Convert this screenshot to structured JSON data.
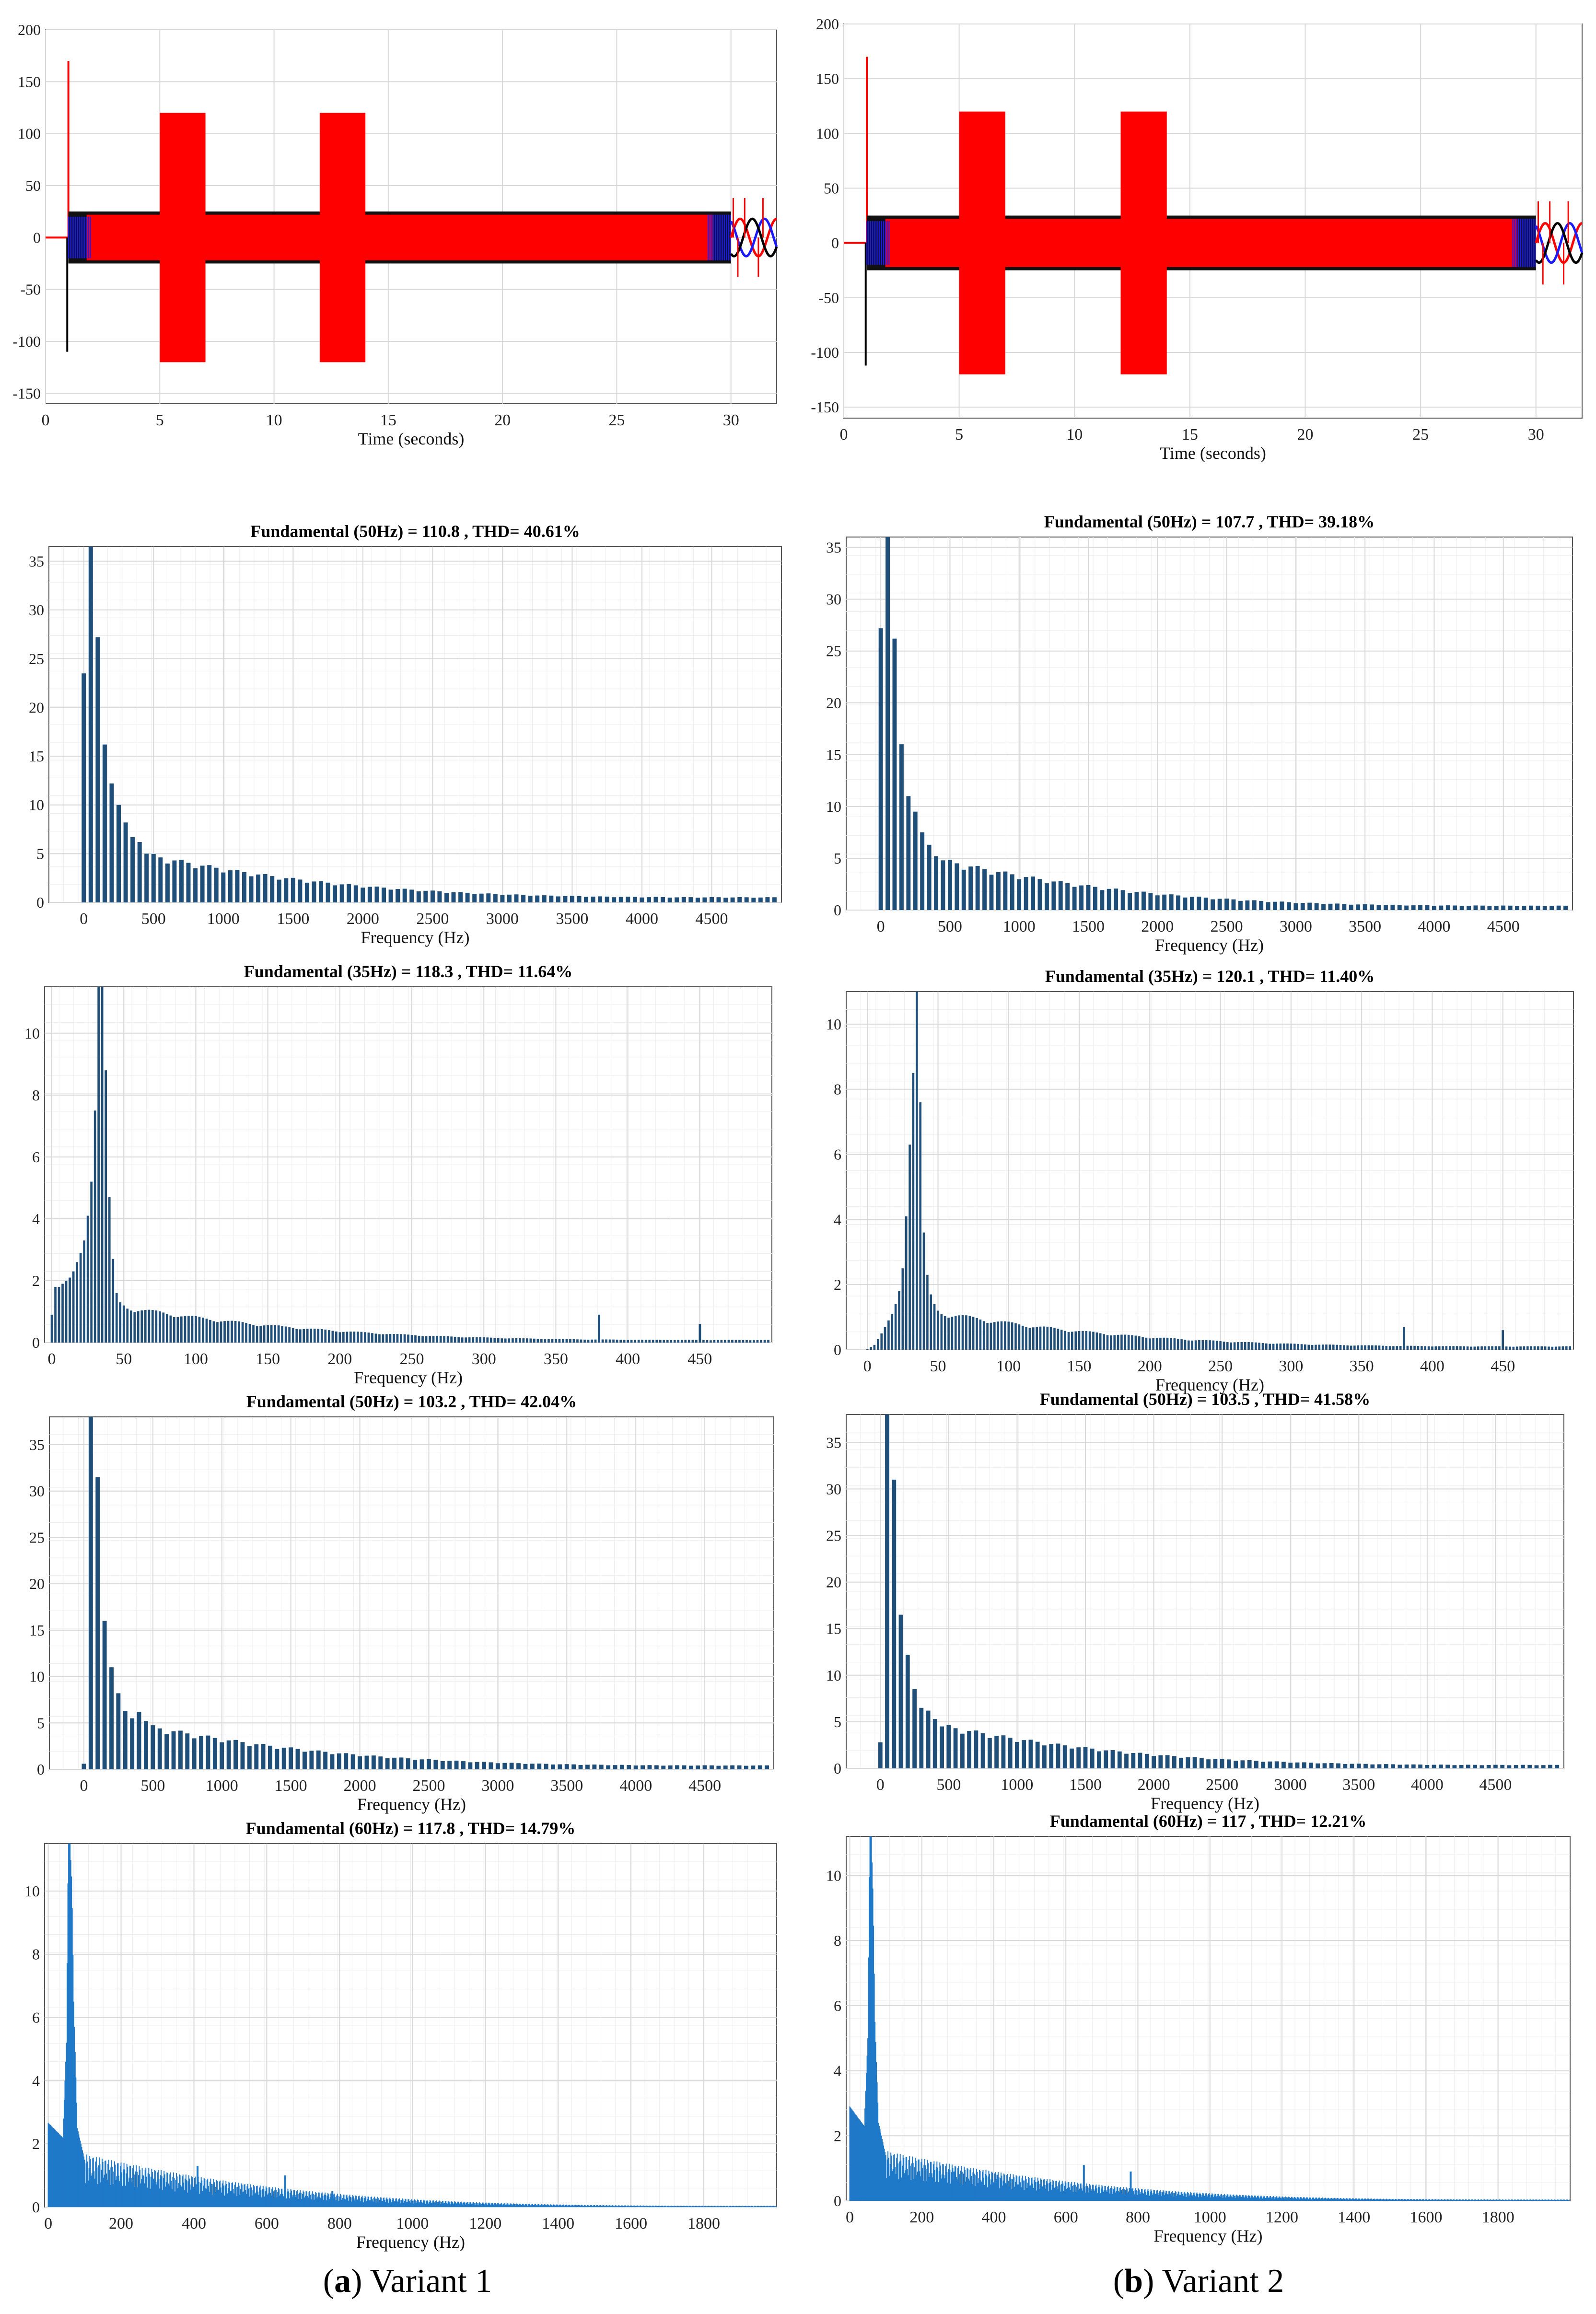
{
  "captions": {
    "left": {
      "letter": "a",
      "text": " Variant 1"
    },
    "right": {
      "letter": "b",
      "text": " Variant 2"
    }
  },
  "colors": {
    "phase_red": "#ff0000",
    "phase_blue": "#1a1aff",
    "phase_black": "#000000",
    "spectrum_bar": "#1f4e79",
    "spectrum_fill": "#1f78c8",
    "grid": "#d8d8d8",
    "axis": "#555555"
  },
  "chart_data": [
    {
      "id": "time-a",
      "type": "line",
      "xlabel": "Time (seconds)",
      "ylabel": "",
      "xlim": [
        0,
        32
      ],
      "ylim": [
        -160,
        200
      ],
      "xticks": [
        0,
        5,
        10,
        15,
        20,
        25,
        30
      ],
      "yticks": [
        -150,
        -100,
        -50,
        0,
        50,
        100,
        150,
        200
      ],
      "grid": true,
      "series": [
        {
          "color": "red",
          "values_desc": "envelope",
          "spike": [
            1,
            170
          ],
          "bursts": [
            [
              5,
              7,
              120
            ],
            [
              12,
              14,
              120
            ]
          ],
          "band": [
            [
              1,
              30,
              22
            ]
          ]
        },
        {
          "color": "black",
          "spike": [
            1,
            -110
          ]
        },
        {
          "color": "blue"
        }
      ]
    },
    {
      "id": "time-b",
      "type": "line",
      "xlabel": "Time (seconds)",
      "ylabel": "",
      "xlim": [
        0,
        32
      ],
      "ylim": [
        -160,
        200
      ],
      "xticks": [
        0,
        5,
        10,
        15,
        20,
        25,
        30
      ],
      "yticks": [
        -150,
        -100,
        -50,
        0,
        50,
        100,
        150,
        200
      ],
      "grid": true,
      "series": [
        {
          "color": "red",
          "spike": [
            1,
            170
          ],
          "bursts": [
            [
              5,
              7,
              120
            ],
            [
              12,
              14,
              120
            ]
          ],
          "band": [
            [
              1,
              30,
              22
            ]
          ]
        },
        {
          "color": "black",
          "spike": [
            1,
            -112
          ]
        },
        {
          "color": "blue"
        }
      ]
    },
    {
      "id": "fft-a1",
      "type": "bar",
      "title": "Fundamental (50Hz) = 110.8 , THD= 40.61%",
      "xlabel": "Frequency (Hz)",
      "xlim": [
        -250,
        5000
      ],
      "ylim": [
        0,
        36.5
      ],
      "xticks": [
        0,
        500,
        1000,
        1500,
        2000,
        2500,
        3000,
        3500,
        4000,
        4500
      ],
      "yticks": [
        0,
        5,
        10,
        15,
        20,
        25,
        30,
        35
      ],
      "bar_spacing": 50,
      "peaks": [
        [
          0,
          23.5
        ],
        [
          50,
          36.5
        ],
        [
          100,
          27.2
        ],
        [
          150,
          16.2
        ],
        [
          200,
          12.2
        ],
        [
          250,
          10
        ],
        [
          300,
          8.2
        ],
        [
          350,
          6.7
        ],
        [
          400,
          6.2
        ],
        [
          450,
          5
        ]
      ],
      "tail": {
        "start": 500,
        "value_at_start": 4.6,
        "value_at_end": 0.5
      }
    },
    {
      "id": "fft-b1",
      "type": "bar",
      "title": "Fundamental (50Hz) = 107.7 , THD= 39.18%",
      "xlabel": "Frequency (Hz)",
      "xlim": [
        -250,
        5000
      ],
      "ylim": [
        0,
        36
      ],
      "xticks": [
        0,
        500,
        1000,
        1500,
        2000,
        2500,
        3000,
        3500,
        4000,
        4500
      ],
      "yticks": [
        0,
        5,
        10,
        15,
        20,
        25,
        30,
        35
      ],
      "bar_spacing": 50,
      "peaks": [
        [
          0,
          27.2
        ],
        [
          50,
          36
        ],
        [
          100,
          26.2
        ],
        [
          150,
          16
        ],
        [
          200,
          11
        ],
        [
          250,
          9.5
        ],
        [
          300,
          7.5
        ],
        [
          350,
          6.3
        ],
        [
          400,
          5.2
        ],
        [
          450,
          4.8
        ]
      ],
      "tail": {
        "start": 500,
        "value_at_start": 4.5,
        "value_at_end": 0.4
      }
    },
    {
      "id": "fft-a2",
      "type": "bar",
      "title": "Fundamental (35Hz) = 118.3 , THD= 11.64%",
      "xlabel": "Frequency (Hz)",
      "xlim": [
        -5,
        500
      ],
      "ylim": [
        0,
        11.5
      ],
      "xticks": [
        0,
        50,
        100,
        150,
        200,
        250,
        300,
        350,
        400,
        450
      ],
      "yticks": [
        0,
        2,
        4,
        6,
        8,
        10
      ],
      "bar_spacing": 2.5,
      "peaks": [
        [
          0,
          0.9
        ],
        [
          2.5,
          1.8
        ],
        [
          5,
          1.8
        ],
        [
          7.5,
          1.9
        ],
        [
          10,
          2
        ],
        [
          12.5,
          2.1
        ],
        [
          15,
          2.3
        ],
        [
          17.5,
          2.6
        ],
        [
          20,
          2.9
        ],
        [
          22.5,
          3.3
        ],
        [
          25,
          4.1
        ],
        [
          27.5,
          5.2
        ],
        [
          30,
          7.5
        ],
        [
          32.5,
          11.5
        ],
        [
          35,
          11.5
        ],
        [
          37.5,
          8.8
        ],
        [
          40,
          4.7
        ],
        [
          42.5,
          2.7
        ],
        [
          45,
          1.6
        ],
        [
          47.5,
          1.3
        ],
        [
          50,
          1.2
        ],
        [
          380,
          0.9
        ],
        [
          450,
          0.6
        ]
      ],
      "tail": {
        "start": 52.5,
        "value_at_start": 1.1,
        "value_at_end": 0.08
      }
    },
    {
      "id": "fft-b2",
      "type": "bar",
      "title": "Fundamental (35Hz) = 120.1 , THD= 11.40%",
      "xlabel": "Frequency (Hz)",
      "xlim": [
        -15,
        500
      ],
      "ylim": [
        0,
        11
      ],
      "xticks": [
        0,
        50,
        100,
        150,
        200,
        250,
        300,
        350,
        400,
        450
      ],
      "yticks": [
        0,
        2,
        4,
        6,
        8,
        10
      ],
      "bar_spacing": 2.5,
      "peaks": [
        [
          0,
          0.02
        ],
        [
          5,
          0.15
        ],
        [
          10,
          0.5
        ],
        [
          15,
          0.9
        ],
        [
          17.5,
          1.1
        ],
        [
          20,
          1.4
        ],
        [
          22.5,
          1.8
        ],
        [
          25,
          2.5
        ],
        [
          27.5,
          4.1
        ],
        [
          30,
          6.3
        ],
        [
          32.5,
          8.5
        ],
        [
          35,
          11
        ],
        [
          37.5,
          7.6
        ],
        [
          40,
          3.6
        ],
        [
          42.5,
          2.3
        ],
        [
          45,
          1.7
        ],
        [
          47.5,
          1.4
        ],
        [
          50,
          1.2
        ],
        [
          380,
          0.7
        ],
        [
          450,
          0.6
        ]
      ],
      "tail": {
        "start": 52.5,
        "value_at_start": 1.1,
        "value_at_end": 0.1
      }
    },
    {
      "id": "fft-a3",
      "type": "bar",
      "title": "Fundamental (50Hz) = 103.2 , THD= 42.04%",
      "xlabel": "Frequency (Hz)",
      "xlim": [
        -250,
        5000
      ],
      "ylim": [
        0,
        38
      ],
      "xticks": [
        0,
        500,
        1000,
        1500,
        2000,
        2500,
        3000,
        3500,
        4000,
        4500
      ],
      "yticks": [
        0,
        5,
        10,
        15,
        20,
        25,
        30,
        35
      ],
      "bar_spacing": 50,
      "peaks": [
        [
          0,
          0.6
        ],
        [
          50,
          38
        ],
        [
          100,
          31.5
        ],
        [
          150,
          16
        ],
        [
          200,
          11
        ],
        [
          250,
          8.2
        ],
        [
          300,
          6.3
        ],
        [
          350,
          5.5
        ],
        [
          400,
          6.2
        ],
        [
          450,
          5.2
        ]
      ],
      "tail": {
        "start": 500,
        "value_at_start": 4.4,
        "value_at_end": 0.4
      }
    },
    {
      "id": "fft-b3",
      "type": "bar",
      "title": "Fundamental (50Hz) = 103.5 , THD= 41.58%",
      "xlabel": "Frequency (Hz)",
      "xlim": [
        -250,
        5000
      ],
      "ylim": [
        0,
        38
      ],
      "xticks": [
        0,
        500,
        1000,
        1500,
        2000,
        2500,
        3000,
        3500,
        4000,
        4500
      ],
      "yticks": [
        0,
        5,
        10,
        15,
        20,
        25,
        30,
        35
      ],
      "bar_spacing": 50,
      "peaks": [
        [
          0,
          2.8
        ],
        [
          50,
          38
        ],
        [
          100,
          31
        ],
        [
          150,
          16.5
        ],
        [
          200,
          12.2
        ],
        [
          250,
          8.5
        ],
        [
          300,
          6.5
        ],
        [
          350,
          6.2
        ],
        [
          400,
          5.3
        ],
        [
          450,
          4.5
        ]
      ],
      "tail": {
        "start": 500,
        "value_at_start": 4.3,
        "value_at_end": 0.35
      }
    },
    {
      "id": "fft-a4",
      "type": "bar",
      "title": "Fundamental (60Hz) = 117.8 , THD= 14.79%",
      "xlabel": "Frequency (Hz)",
      "xlim": [
        -10,
        2000
      ],
      "ylim": [
        0,
        11.5
      ],
      "xticks": [
        0,
        200,
        400,
        600,
        800,
        1000,
        1200,
        1400,
        1600,
        1800
      ],
      "yticks": [
        0,
        2,
        4,
        6,
        8,
        10
      ],
      "bar_spacing": 2,
      "peaks": [
        [
          40,
          2.2
        ],
        [
          50,
          5.2
        ],
        [
          55,
          11.5
        ],
        [
          60,
          11.5
        ],
        [
          65,
          10.2
        ],
        [
          70,
          6.5
        ],
        [
          80,
          2.5
        ],
        [
          100,
          1.5
        ],
        [
          260,
          1
        ],
        [
          290,
          0.9
        ],
        [
          410,
          1.3
        ],
        [
          650,
          1
        ],
        [
          780,
          0.5
        ]
      ],
      "tail": {
        "start": 100,
        "value_at_start": 1.2,
        "value_at_end": 0.03
      }
    },
    {
      "id": "fft-b4",
      "type": "bar",
      "title": "Fundamental (60Hz) = 117 , THD= 12.21%",
      "xlabel": "Frequency (Hz)",
      "xlim": [
        -10,
        2000
      ],
      "ylim": [
        0,
        11.2
      ],
      "xticks": [
        0,
        200,
        400,
        600,
        800,
        1000,
        1200,
        1400,
        1600,
        1800
      ],
      "yticks": [
        0,
        2,
        4,
        6,
        8,
        10
      ],
      "bar_spacing": 2,
      "peaks": [
        [
          40,
          2.3
        ],
        [
          50,
          5
        ],
        [
          55,
          11.2
        ],
        [
          60,
          11.2
        ],
        [
          65,
          9.2
        ],
        [
          70,
          5.5
        ],
        [
          80,
          2.4
        ],
        [
          100,
          1.4
        ],
        [
          290,
          0.9
        ],
        [
          410,
          0.8
        ],
        [
          650,
          1.1
        ],
        [
          780,
          0.9
        ]
      ],
      "tail": {
        "start": 100,
        "value_at_start": 1.1,
        "value_at_end": 0.03
      }
    }
  ]
}
